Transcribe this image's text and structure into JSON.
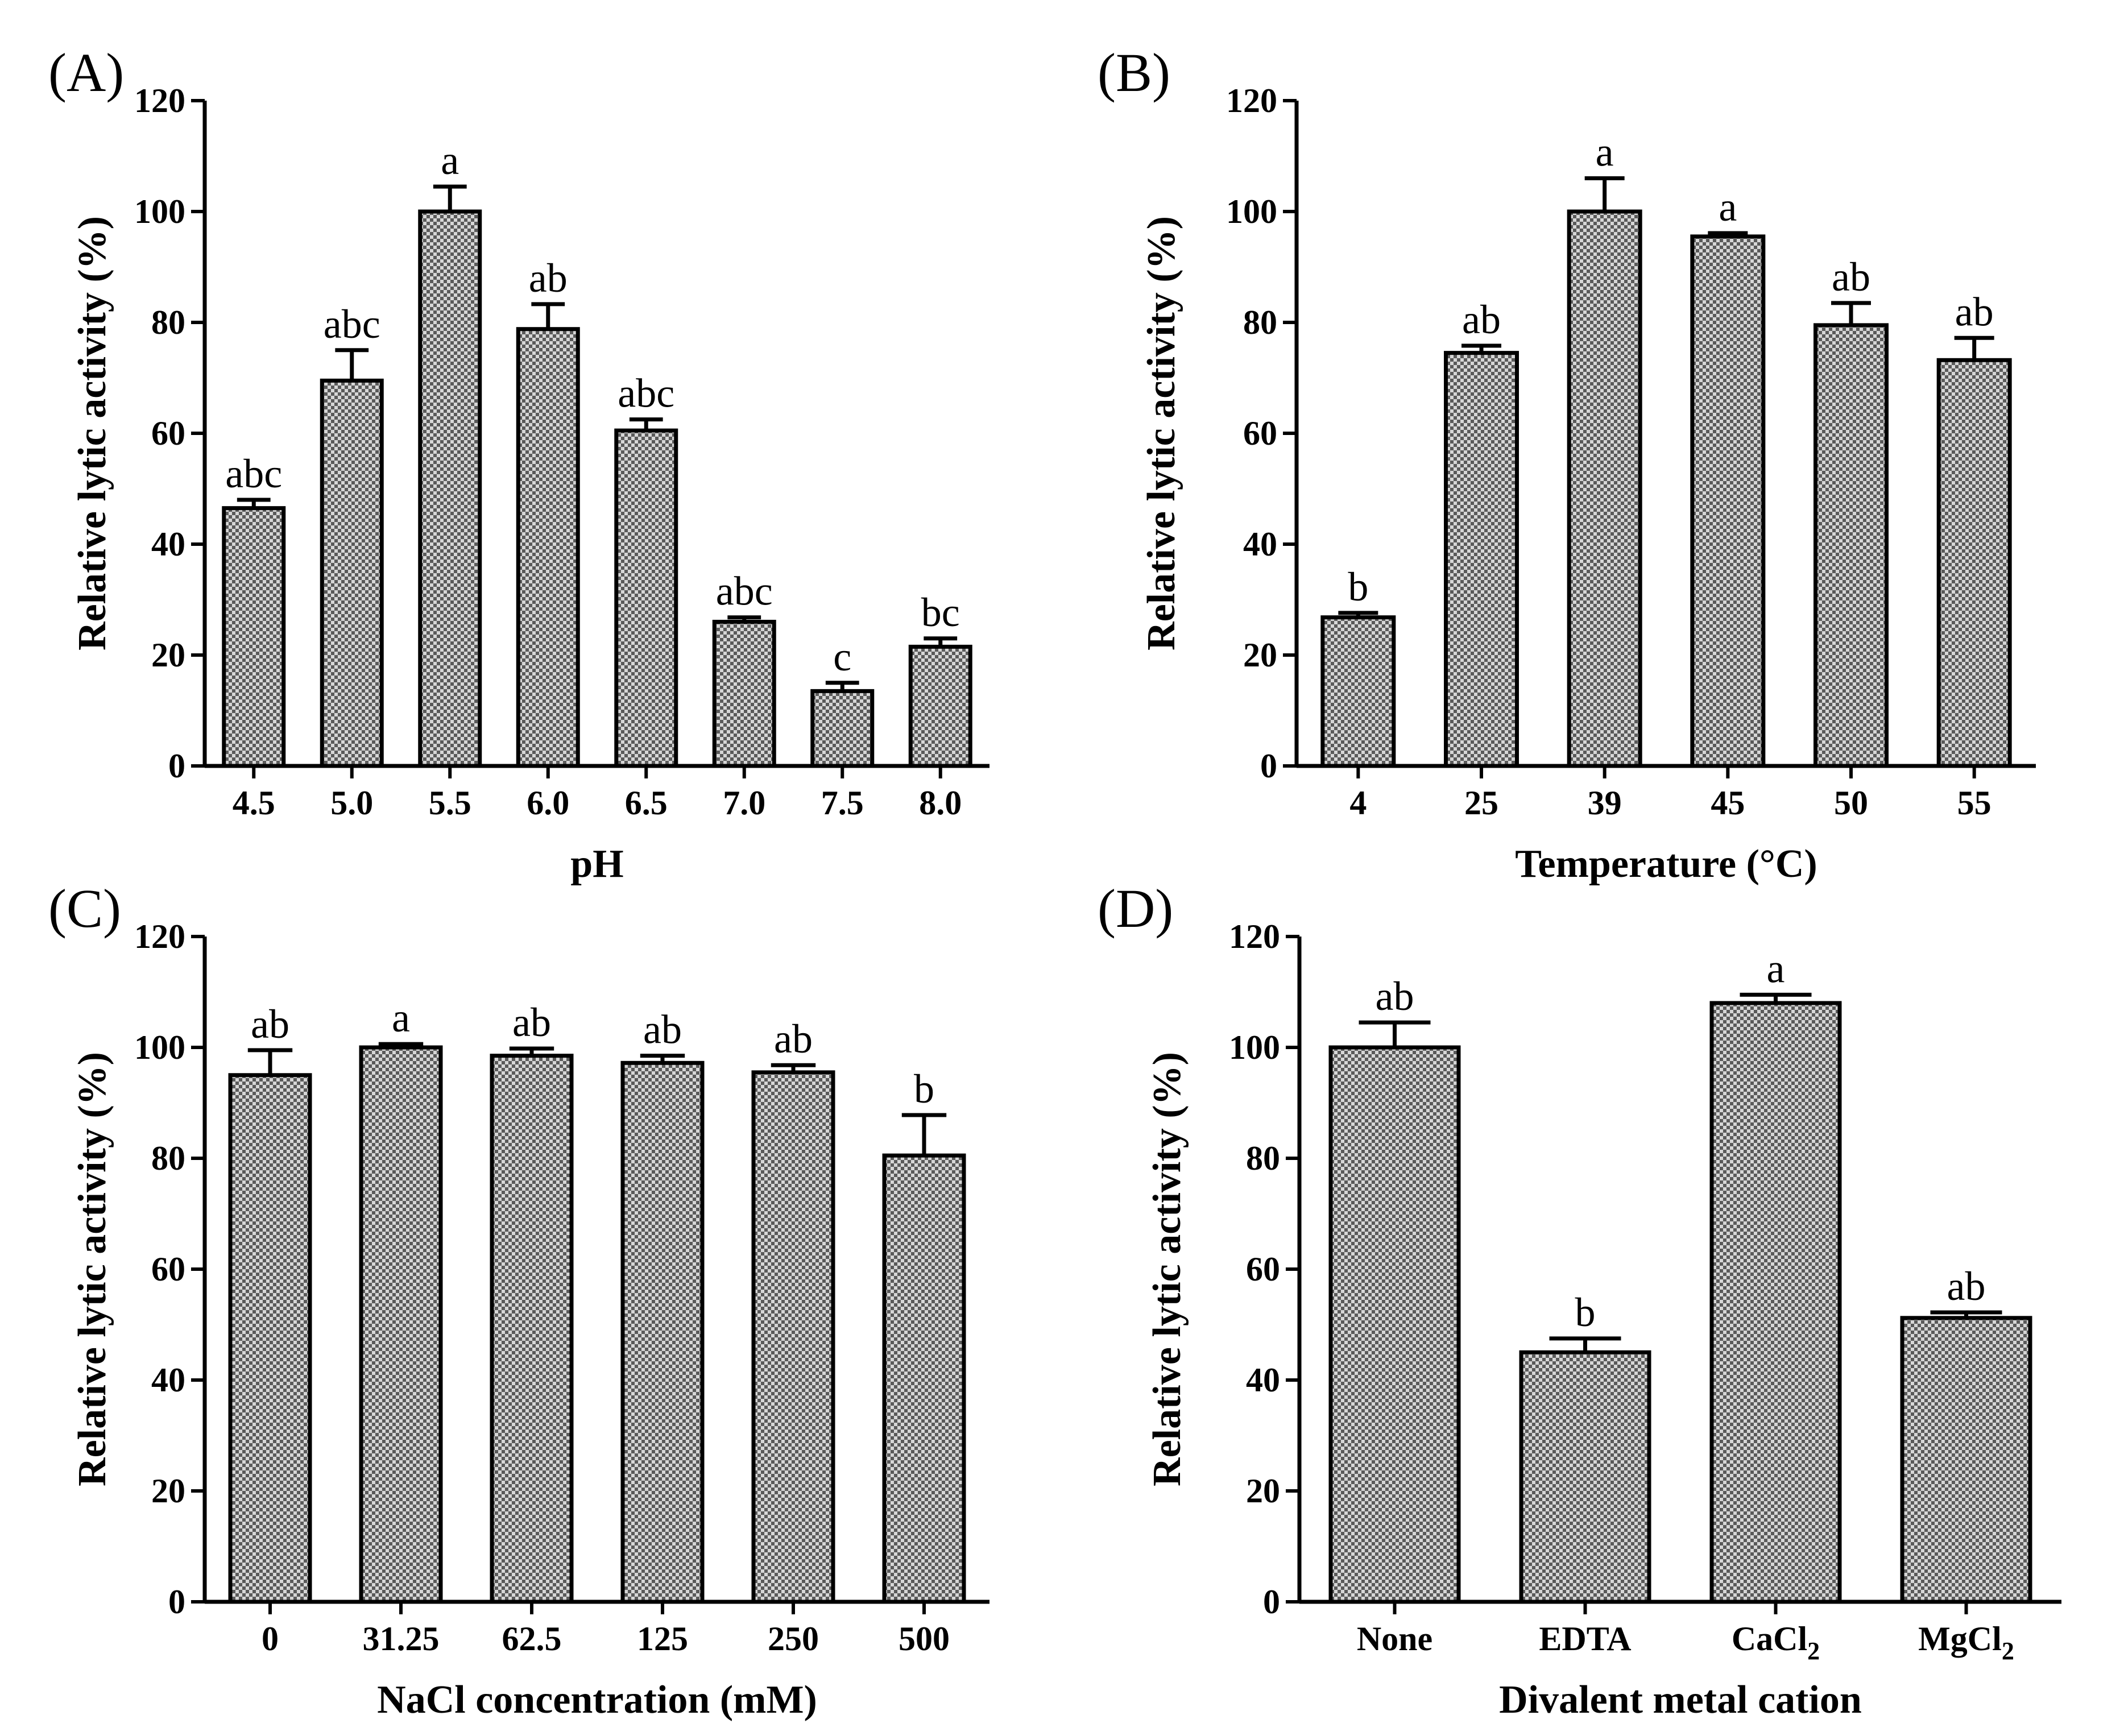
{
  "figure": {
    "background": "#ffffff",
    "bar_fill_dark": "#5a5a5a",
    "bar_fill_light": "#d6d6d6",
    "stroke": "#000000"
  },
  "chart_data": [
    {
      "panel": "(A)",
      "type": "bar",
      "title": "",
      "xlabel": "pH",
      "ylabel": "Relative lytic activity (%)",
      "ylim": [
        0,
        120
      ],
      "yticks": [
        "0",
        "20",
        "40",
        "60",
        "80",
        "100",
        "120"
      ],
      "categories": [
        {
          "text": "4.5"
        },
        {
          "text": "5.0"
        },
        {
          "text": "5.5"
        },
        {
          "text": "6.0"
        },
        {
          "text": "6.5"
        },
        {
          "text": "7.0"
        },
        {
          "text": "7.5"
        },
        {
          "text": "8.0"
        }
      ],
      "values": [
        46.5,
        69.5,
        100,
        78.8,
        60.5,
        26,
        13.5,
        21.5
      ],
      "errors": [
        1.5,
        5.5,
        4.5,
        4.5,
        2,
        0.8,
        1.5,
        1.5
      ],
      "significance": [
        "abc",
        "abc",
        "a",
        "ab",
        "abc",
        "abc",
        "c",
        "bc"
      ]
    },
    {
      "panel": "(B)",
      "type": "bar",
      "title": "",
      "xlabel": "Temperature (°C)",
      "ylabel": "Relative lytic activity (%)",
      "ylim": [
        0,
        120
      ],
      "yticks": [
        "0",
        "20",
        "40",
        "60",
        "80",
        "100",
        "120"
      ],
      "categories": [
        {
          "text": "4"
        },
        {
          "text": "25"
        },
        {
          "text": "39"
        },
        {
          "text": "45"
        },
        {
          "text": "50"
        },
        {
          "text": "55"
        }
      ],
      "values": [
        26.8,
        74.5,
        100,
        95.5,
        79.5,
        73.2
      ],
      "errors": [
        0.8,
        1.3,
        6,
        0.6,
        4,
        4
      ],
      "significance": [
        "b",
        "ab",
        "a",
        "a",
        "ab",
        "ab"
      ]
    },
    {
      "panel": "(C)",
      "type": "bar",
      "title": "",
      "xlabel": "NaCl concentration (mM)",
      "ylabel": "Relative lytic activity (%)",
      "ylim": [
        0,
        120
      ],
      "yticks": [
        "0",
        "20",
        "40",
        "60",
        "80",
        "100",
        "120"
      ],
      "categories": [
        {
          "text": "0"
        },
        {
          "text": "31.25"
        },
        {
          "text": "62.5"
        },
        {
          "text": "125"
        },
        {
          "text": "250"
        },
        {
          "text": "500"
        }
      ],
      "values": [
        95,
        100,
        98.5,
        97.2,
        95.5,
        80.5
      ],
      "errors": [
        4.5,
        0.6,
        1.3,
        1.3,
        1.3,
        7.3
      ],
      "significance": [
        "ab",
        "a",
        "ab",
        "ab",
        "ab",
        "b"
      ]
    },
    {
      "panel": "(D)",
      "type": "bar",
      "title": "",
      "xlabel": "Divalent metal cation",
      "ylabel": "Relative lytic activity (%)",
      "ylim": [
        0,
        120
      ],
      "yticks": [
        "0",
        "20",
        "40",
        "60",
        "80",
        "100",
        "120"
      ],
      "categories": [
        {
          "text": "None",
          "sub": "",
          "after": ""
        },
        {
          "text": "EDTA",
          "sub": "",
          "after": ""
        },
        {
          "text": "CaCl",
          "sub": "2",
          "after": ""
        },
        {
          "text": "MgCl",
          "sub": "2",
          "after": ""
        }
      ],
      "values": [
        100,
        45,
        108,
        51.2
      ],
      "errors": [
        4.5,
        2.5,
        1.5,
        1
      ],
      "significance": [
        "ab",
        "b",
        "a",
        "ab"
      ]
    }
  ]
}
